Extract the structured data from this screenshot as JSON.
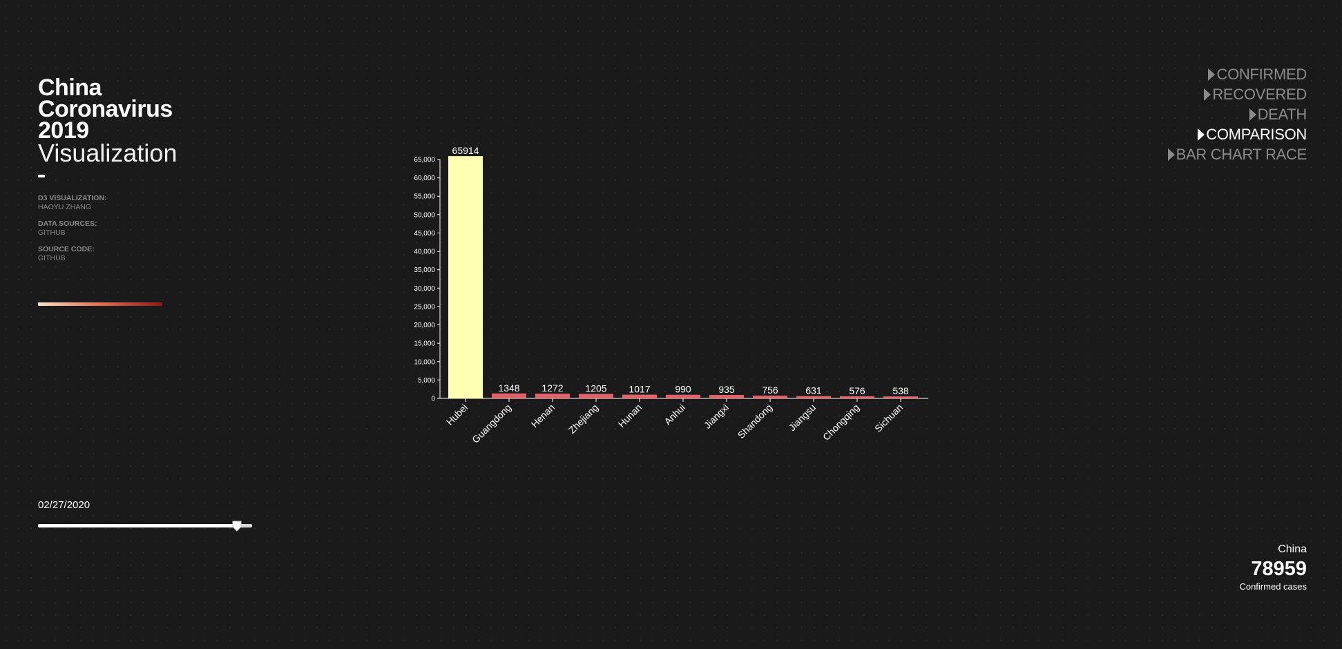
{
  "title": {
    "line1": "China",
    "line2": "Coronavirus",
    "line3": "2019",
    "line4": "Visualization"
  },
  "credits": [
    {
      "label": "D3 VISUALIZATION:",
      "value": "HAOYU ZHANG"
    },
    {
      "label": "DATA SOURCES:",
      "value": "GITHUB"
    },
    {
      "label": "SOURCE CODE:",
      "value": "GITHUB"
    }
  ],
  "legend_gradient": {
    "from": "#fde0c5",
    "to": "#8b1a1a"
  },
  "slider": {
    "date": "02/27/2020",
    "position": 0.93
  },
  "nav": {
    "items": [
      {
        "label": "CONFIRMED",
        "active": false
      },
      {
        "label": "RECOVERED",
        "active": false
      },
      {
        "label": "DEATH",
        "active": false
      },
      {
        "label": "COMPARISON",
        "active": true
      },
      {
        "label": "BAR CHART RACE",
        "active": false
      }
    ]
  },
  "summary": {
    "region": "China",
    "count": "78959",
    "caption": "Confirmed cases"
  },
  "colors": {
    "background": "#1a1a1a",
    "highlight_bar": "#ffffb2",
    "bar": "#e0636a",
    "muted_text": "#8a8a8a"
  },
  "chart_data": {
    "type": "bar",
    "categories": [
      "Hubei",
      "Guangdong",
      "Henan",
      "Zhejiang",
      "Hunan",
      "Anhui",
      "Jiangxi",
      "Shandong",
      "Jiangsu",
      "Chongqing",
      "Sichuan"
    ],
    "values": [
      65914,
      1348,
      1272,
      1205,
      1017,
      990,
      935,
      756,
      631,
      576,
      538
    ],
    "ylim": [
      0,
      65000
    ],
    "yticks": [
      0,
      5000,
      10000,
      15000,
      20000,
      25000,
      30000,
      35000,
      40000,
      45000,
      50000,
      55000,
      60000,
      65000
    ],
    "title": "",
    "xlabel": "",
    "ylabel": "",
    "grid": false
  }
}
